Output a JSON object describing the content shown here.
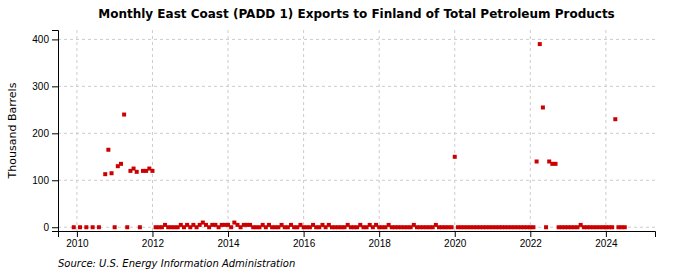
{
  "chart_data": {
    "type": "scatter",
    "title": "Monthly East Coast (PADD 1) Exports to Finland of Total Petroleum Products",
    "ylabel": "Thousand Barrels",
    "source": "Source: U.S. Energy Information Administration",
    "color": "#cc0000",
    "marker": "square",
    "grid": true,
    "xlim": [
      2009.5,
      2025.3
    ],
    "ylim": [
      -8,
      420
    ],
    "xticks": [
      2010,
      2012,
      2014,
      2016,
      2018,
      2020,
      2022,
      2024
    ],
    "yticks": [
      0,
      100,
      200,
      300,
      400
    ],
    "x": [
      2009.917,
      2010.083,
      2010.25,
      2010.417,
      2010.583,
      2010.75,
      2010.833,
      2010.917,
      2011.0,
      2011.083,
      2011.167,
      2011.25,
      2011.333,
      2011.417,
      2011.5,
      2011.583,
      2011.667,
      2011.75,
      2011.833,
      2011.917,
      2012.0,
      2012.083,
      2012.167,
      2012.25,
      2012.333,
      2012.417,
      2012.5,
      2012.583,
      2012.667,
      2012.75,
      2012.833,
      2012.917,
      2013.0,
      2013.083,
      2013.167,
      2013.25,
      2013.333,
      2013.417,
      2013.5,
      2013.583,
      2013.667,
      2013.75,
      2013.833,
      2013.917,
      2014.0,
      2014.083,
      2014.167,
      2014.25,
      2014.333,
      2014.417,
      2014.5,
      2014.583,
      2014.667,
      2014.75,
      2014.833,
      2014.917,
      2015.0,
      2015.083,
      2015.167,
      2015.25,
      2015.333,
      2015.417,
      2015.5,
      2015.583,
      2015.667,
      2015.75,
      2015.833,
      2015.917,
      2016.0,
      2016.083,
      2016.167,
      2016.25,
      2016.333,
      2016.417,
      2016.5,
      2016.583,
      2016.667,
      2016.75,
      2016.833,
      2016.917,
      2017.0,
      2017.083,
      2017.167,
      2017.25,
      2017.333,
      2017.417,
      2017.5,
      2017.583,
      2017.667,
      2017.75,
      2017.833,
      2017.917,
      2018.0,
      2018.083,
      2018.167,
      2018.25,
      2018.333,
      2018.417,
      2018.5,
      2018.583,
      2018.667,
      2018.75,
      2018.833,
      2018.917,
      2019.0,
      2019.083,
      2019.167,
      2019.25,
      2019.333,
      2019.417,
      2019.5,
      2019.583,
      2019.667,
      2019.75,
      2019.833,
      2019.917,
      2020.0,
      2020.083,
      2020.167,
      2020.25,
      2020.333,
      2020.417,
      2020.5,
      2020.583,
      2020.667,
      2020.75,
      2020.833,
      2020.917,
      2021.0,
      2021.083,
      2021.167,
      2021.25,
      2021.333,
      2021.417,
      2021.5,
      2021.583,
      2021.667,
      2021.75,
      2021.833,
      2021.917,
      2022.0,
      2022.083,
      2022.167,
      2022.25,
      2022.333,
      2022.417,
      2022.5,
      2022.583,
      2022.667,
      2022.75,
      2022.833,
      2022.917,
      2023.0,
      2023.083,
      2023.167,
      2023.25,
      2023.333,
      2023.417,
      2023.5,
      2023.583,
      2023.667,
      2023.75,
      2023.833,
      2023.917,
      2024.0,
      2024.083,
      2024.167,
      2024.25,
      2024.333,
      2024.417,
      2024.5
    ],
    "values": [
      0,
      0,
      0,
      0,
      0,
      113,
      165,
      115,
      0,
      130,
      135,
      240,
      0,
      120,
      125,
      118,
      0,
      120,
      120,
      125,
      120,
      0,
      0,
      0,
      5,
      0,
      0,
      0,
      0,
      5,
      0,
      5,
      0,
      5,
      0,
      5,
      10,
      5,
      0,
      5,
      5,
      0,
      5,
      5,
      5,
      0,
      10,
      5,
      0,
      5,
      5,
      5,
      0,
      0,
      0,
      5,
      0,
      5,
      0,
      0,
      0,
      5,
      0,
      0,
      5,
      0,
      0,
      5,
      0,
      0,
      0,
      5,
      0,
      0,
      5,
      0,
      5,
      0,
      0,
      0,
      0,
      0,
      5,
      0,
      0,
      0,
      5,
      0,
      0,
      5,
      0,
      5,
      0,
      0,
      0,
      5,
      0,
      0,
      0,
      0,
      0,
      0,
      0,
      5,
      0,
      0,
      0,
      0,
      0,
      0,
      5,
      0,
      0,
      0,
      0,
      0,
      150,
      0,
      0,
      0,
      0,
      0,
      0,
      0,
      0,
      0,
      0,
      0,
      0,
      0,
      0,
      0,
      0,
      0,
      0,
      0,
      0,
      0,
      0,
      0,
      0,
      0,
      140,
      390,
      255,
      0,
      140,
      135,
      135,
      0,
      0,
      0,
      0,
      0,
      0,
      0,
      5,
      0,
      0,
      0,
      0,
      0,
      0,
      0,
      0,
      0,
      0,
      230,
      0,
      0,
      0
    ]
  }
}
